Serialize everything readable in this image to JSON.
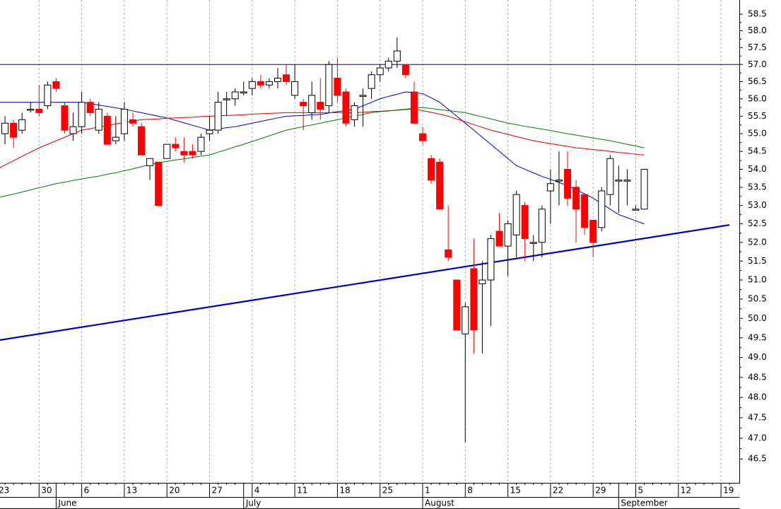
{
  "chart_data": {
    "type": "candlestick",
    "log_scale": true,
    "ylim": [
      45.93,
      58.93
    ],
    "yticks": [
      {
        "value": 46.5,
        "label": "46.5"
      },
      {
        "value": 47,
        "label": "47.0"
      },
      {
        "value": 47.5,
        "label": "47.5"
      },
      {
        "value": 48,
        "label": "48.0"
      },
      {
        "value": 48.5,
        "label": "48.5"
      },
      {
        "value": 49,
        "label": "49.0"
      },
      {
        "value": 49.5,
        "label": "49.5"
      },
      {
        "value": 50,
        "label": "50.0"
      },
      {
        "value": 50.5,
        "label": "50.5"
      },
      {
        "value": 51,
        "label": "51.0"
      },
      {
        "value": 51.5,
        "label": "51.5"
      },
      {
        "value": 52,
        "label": "52.0"
      },
      {
        "value": 52.5,
        "label": "52.5"
      },
      {
        "value": 53,
        "label": "53.0"
      },
      {
        "value": 53.5,
        "label": "53.5"
      },
      {
        "value": 54,
        "label": "54.0"
      },
      {
        "value": 54.5,
        "label": "54.5"
      },
      {
        "value": 55,
        "label": "55.0"
      },
      {
        "value": 55.5,
        "label": "55.5"
      },
      {
        "value": 56,
        "label": "56.0"
      },
      {
        "value": 56.5,
        "label": "56.5"
      },
      {
        "value": 57,
        "label": "57.0"
      },
      {
        "value": 57.5,
        "label": "57.5"
      },
      {
        "value": 58,
        "label": "58.0"
      },
      {
        "value": 58.5,
        "label": "58.5"
      }
    ],
    "categories": [
      "23",
      null,
      null,
      null,
      null,
      "30",
      null,
      null,
      null,
      null,
      "6",
      null,
      null,
      null,
      null,
      "13",
      null,
      null,
      null,
      null,
      "20",
      null,
      null,
      null,
      null,
      "27",
      null,
      null,
      null,
      null,
      "4",
      null,
      null,
      null,
      null,
      "11",
      null,
      null,
      null,
      null,
      "18",
      null,
      null,
      null,
      null,
      "25",
      null,
      null,
      null,
      null,
      "1",
      null,
      null,
      null,
      null,
      "8",
      null,
      null,
      null,
      null,
      "15",
      null,
      null,
      null,
      null,
      "22",
      null,
      null,
      null,
      null,
      "29",
      null,
      null,
      null,
      null,
      "5",
      null,
      null,
      null,
      null,
      "12",
      null,
      null,
      null,
      null,
      "19",
      null
    ],
    "months": [
      null,
      null,
      null,
      null,
      null,
      null,
      null,
      "June",
      null,
      null,
      null,
      null,
      null,
      null,
      null,
      null,
      null,
      null,
      null,
      null,
      null,
      null,
      null,
      null,
      null,
      null,
      null,
      null,
      null,
      "July",
      null,
      null,
      null,
      null,
      null,
      null,
      null,
      null,
      null,
      null,
      null,
      null,
      null,
      null,
      null,
      null,
      null,
      null,
      null,
      null,
      "August",
      null,
      null,
      null,
      null,
      null,
      null,
      null,
      null,
      null,
      null,
      null,
      null,
      null,
      null,
      null,
      null,
      null,
      null,
      null,
      null,
      null,
      null,
      "September",
      null,
      null,
      null,
      null,
      null,
      null,
      null,
      null,
      null,
      null,
      null,
      null,
      null
    ],
    "up_color": "#ffffff",
    "down_color": "#ff0000",
    "open": [
      null,
      55.0,
      55.3,
      55.1,
      55.7,
      55.7,
      55.8,
      56.5,
      55.8,
      55.0,
      55.2,
      55.9,
      55.1,
      55.5,
      54.8,
      55.0,
      55.4,
      55.2,
      54.1,
      54.2,
      54.3,
      54.7,
      54.5,
      54.5,
      54.5,
      55.0,
      55.1,
      56.0,
      56.0,
      56.2,
      56.3,
      56.5,
      56.4,
      56.5,
      56.7,
      56.1,
      55.9,
      55.6,
      55.9,
      55.8,
      56.6,
      56.2,
      55.4,
      56.1,
      56.3,
      56.7,
      56.9,
      57.1,
      57.0,
      56.2,
      55.0,
      54.3,
      54.2,
      51.8,
      51.0,
      49.6,
      51.3,
      50.9,
      51.0,
      52.3,
      51.9,
      52.2,
      53.0,
      52.0,
      52.0,
      53.4,
      53.7,
      54.0,
      53.5,
      53.3,
      52.6,
      52.4,
      53.3,
      53.7,
      53.7,
      52.9,
      52.9,
      null,
      null,
      null,
      null,
      null,
      null,
      null,
      null,
      null,
      null
    ],
    "high": [
      null,
      55.5,
      55.4,
      55.6,
      55.9,
      56.4,
      56.5,
      56.6,
      55.9,
      55.6,
      56.2,
      56.0,
      55.9,
      55.6,
      55.5,
      55.9,
      55.6,
      55.3,
      54.3,
      54.2,
      54.7,
      54.9,
      54.9,
      54.7,
      55.0,
      55.5,
      56.2,
      56.2,
      56.3,
      56.5,
      56.6,
      56.7,
      56.6,
      56.9,
      57.0,
      57.0,
      56.0,
      56.5,
      56.6,
      57.1,
      57.2,
      56.3,
      55.9,
      56.3,
      56.8,
      57.0,
      57.2,
      57.8,
      57.0,
      56.5,
      55.2,
      54.4,
      54.3,
      53.0,
      51.0,
      50.4,
      52.1,
      51.5,
      52.2,
      52.8,
      52.6,
      53.4,
      53.1,
      52.2,
      53.0,
      54.0,
      54.5,
      54.5,
      53.7,
      53.3,
      52.6,
      53.5,
      54.4,
      54.1,
      54.0,
      53.0,
      54.0,
      null,
      null,
      null,
      null,
      null,
      null,
      null,
      null,
      null,
      null
    ],
    "low": [
      null,
      54.7,
      54.6,
      55.0,
      55.6,
      55.5,
      55.7,
      56.2,
      55.0,
      54.8,
      55.0,
      55.5,
      55.0,
      54.7,
      54.7,
      54.8,
      55.2,
      54.4,
      53.7,
      53.0,
      54.3,
      54.5,
      54.2,
      54.3,
      54.4,
      54.8,
      55.0,
      55.5,
      55.8,
      56.1,
      56.1,
      56.3,
      56.3,
      56.3,
      56.4,
      56.0,
      55.1,
      55.4,
      55.4,
      55.6,
      55.9,
      55.2,
      55.2,
      55.2,
      56.0,
      56.5,
      56.8,
      56.9,
      56.6,
      55.3,
      54.7,
      53.6,
      52.9,
      51.5,
      49.7,
      46.9,
      49.1,
      49.1,
      49.8,
      51.9,
      51.1,
      51.6,
      51.5,
      51.5,
      51.6,
      52.5,
      53.0,
      53.0,
      52.0,
      52.2,
      51.6,
      52.3,
      53.0,
      52.8,
      53.0,
      52.9,
      52.9,
      null,
      null,
      null,
      null,
      null,
      null,
      null,
      null,
      null,
      null
    ],
    "close": [
      null,
      55.3,
      54.9,
      55.4,
      55.7,
      55.6,
      56.4,
      56.3,
      55.1,
      55.2,
      55.9,
      55.6,
      55.7,
      54.7,
      54.9,
      55.7,
      55.3,
      54.4,
      54.3,
      53.0,
      54.7,
      54.6,
      54.4,
      54.4,
      54.9,
      55.1,
      55.9,
      56.0,
      56.2,
      56.2,
      56.5,
      56.4,
      56.5,
      56.6,
      56.5,
      56.5,
      55.8,
      56.1,
      55.7,
      57.0,
      56.1,
      55.3,
      55.8,
      56.1,
      56.7,
      56.9,
      57.1,
      57.4,
      56.7,
      55.3,
      54.8,
      53.7,
      52.9,
      51.6,
      49.7,
      50.3,
      49.7,
      51.0,
      52.1,
      51.9,
      52.5,
      53.3,
      52.1,
      52.0,
      52.9,
      53.6,
      53.7,
      53.2,
      52.9,
      52.4,
      52.0,
      53.4,
      54.3,
      53.7,
      53.7,
      52.9,
      54.0,
      null,
      null,
      null,
      null,
      null,
      null,
      null,
      null,
      null,
      null
    ],
    "series": [
      {
        "color": "#0000cc",
        "values": [
          55.9,
          55.9,
          55.9,
          55.9,
          55.9,
          55.9,
          55.9,
          55.9,
          55.9,
          55.9,
          55.9,
          55.86,
          55.82,
          55.78,
          55.74,
          55.7,
          55.65,
          55.6,
          55.55,
          55.5,
          55.45,
          55.38,
          55.31,
          55.24,
          55.17,
          55.1,
          55.13,
          55.17,
          55.2,
          55.25,
          55.3,
          55.35,
          55.4,
          55.45,
          55.5,
          55.51,
          55.52,
          55.54,
          55.55,
          55.59,
          55.63,
          55.66,
          55.7,
          55.8,
          55.9,
          56.0,
          56.07,
          56.13,
          56.2,
          56.18,
          56.15,
          56.03,
          55.9,
          55.7,
          55.5,
          55.3,
          55.1,
          54.9,
          54.7,
          54.5,
          54.3,
          54.1,
          54.0,
          53.9,
          53.8,
          53.72,
          53.63,
          53.55,
          53.43,
          53.32,
          53.2,
          53.05,
          52.9,
          52.75,
          52.67,
          52.58,
          52.5,
          null,
          null,
          null,
          null,
          null,
          null,
          null,
          null,
          null,
          null
        ]
      },
      {
        "color": "#dd0000",
        "values": [
          54.0,
          54.12,
          54.24,
          54.36,
          54.48,
          54.6,
          54.7,
          54.8,
          54.9,
          55.0,
          55.1,
          55.14,
          55.19,
          55.23,
          55.28,
          55.32,
          55.36,
          55.4,
          55.41,
          55.42,
          55.44,
          55.45,
          55.46,
          55.47,
          55.49,
          55.5,
          55.51,
          55.52,
          55.53,
          55.54,
          55.56,
          55.57,
          55.58,
          55.59,
          55.6,
          55.6,
          55.6,
          55.6,
          55.6,
          55.6,
          55.6,
          55.6,
          55.6,
          55.61,
          55.63,
          55.64,
          55.66,
          55.67,
          55.69,
          55.7,
          55.66,
          55.61,
          55.56,
          55.5,
          55.42,
          55.34,
          55.26,
          55.18,
          55.1,
          55.04,
          54.98,
          54.92,
          54.86,
          54.8,
          54.76,
          54.72,
          54.68,
          54.64,
          54.6,
          54.58,
          54.55,
          54.53,
          54.5,
          54.47,
          54.45,
          54.42,
          54.4,
          null,
          null,
          null,
          null,
          null,
          null,
          null,
          null,
          null,
          null
        ]
      },
      {
        "color": "#008000",
        "values": [
          53.2,
          53.26,
          53.31,
          53.37,
          53.43,
          53.49,
          53.54,
          53.6,
          53.64,
          53.69,
          53.73,
          53.77,
          53.81,
          53.86,
          53.9,
          53.96,
          54.01,
          54.07,
          54.13,
          54.18,
          54.22,
          54.26,
          54.29,
          54.33,
          54.37,
          54.4,
          54.48,
          54.55,
          54.63,
          54.7,
          54.78,
          54.86,
          54.94,
          55.02,
          55.1,
          55.15,
          55.2,
          55.25,
          55.3,
          55.35,
          55.4,
          55.45,
          55.5,
          55.55,
          55.6,
          55.63,
          55.65,
          55.68,
          55.7,
          55.73,
          55.75,
          55.72,
          55.69,
          55.66,
          55.63,
          55.6,
          55.54,
          55.48,
          55.42,
          55.36,
          55.3,
          55.26,
          55.21,
          55.17,
          55.13,
          55.09,
          55.04,
          55.0,
          54.96,
          54.92,
          54.88,
          54.84,
          54.8,
          54.75,
          54.7,
          54.65,
          54.6,
          null,
          null,
          null,
          null,
          null,
          null,
          null,
          null,
          null,
          null
        ]
      }
    ],
    "hlines": [
      57.0
    ],
    "hline_color": "#0000aa",
    "trendline": [
      49.43,
      52.47
    ],
    "trendline_color": "#0000cc",
    "grid": true
  }
}
